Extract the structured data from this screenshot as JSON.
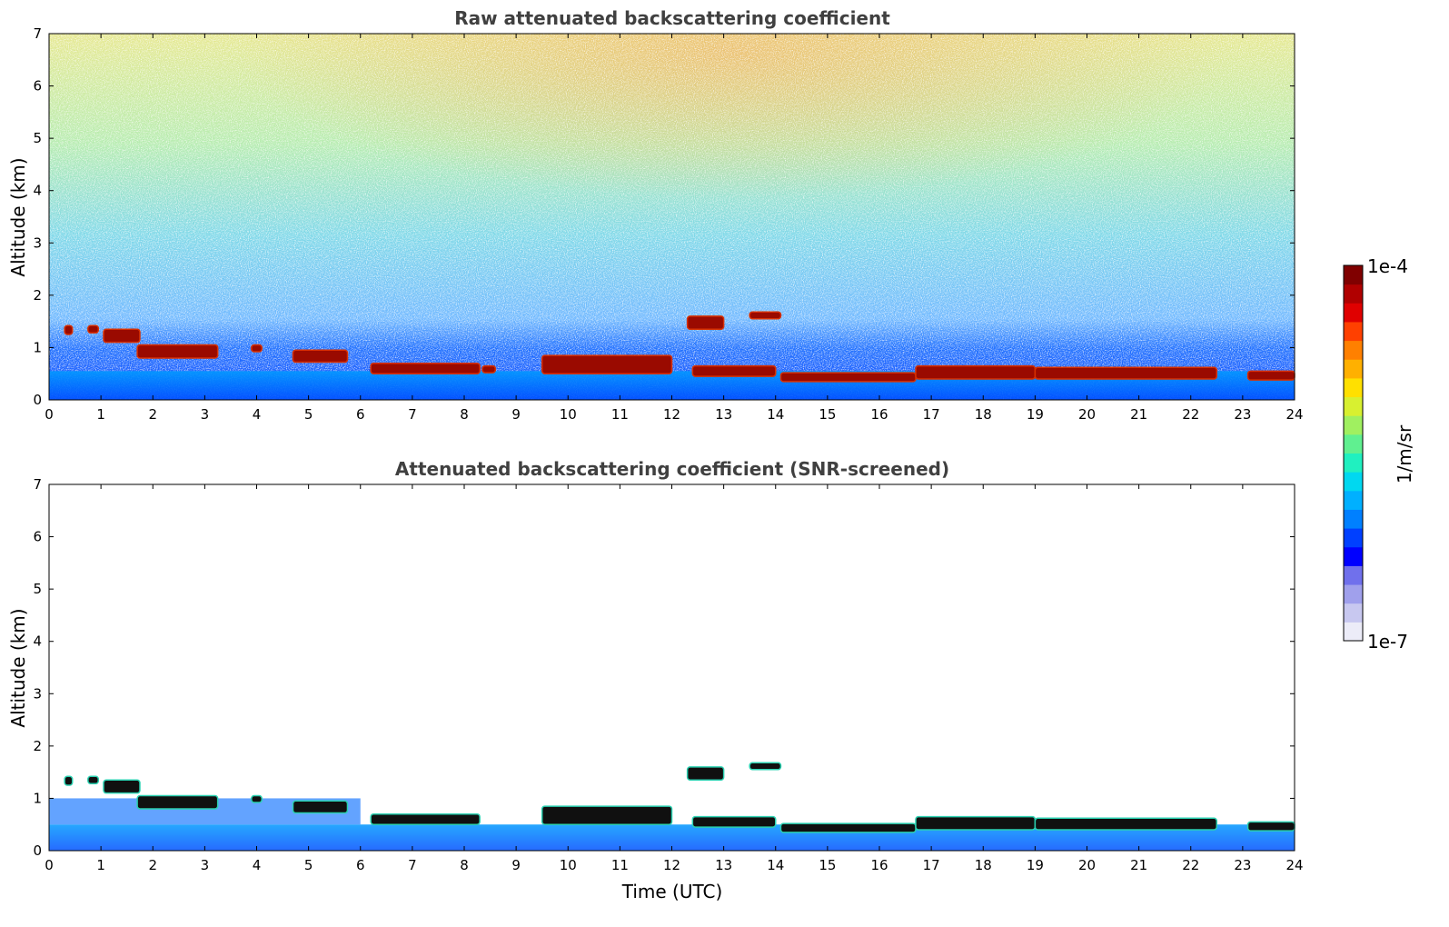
{
  "chart_data": [
    {
      "type": "heatmap",
      "title": "Raw attenuated backscattering coefficient",
      "xlabel": "",
      "ylabel": "Altitude (km)",
      "xlim": [
        0,
        24
      ],
      "ylim": [
        0,
        7
      ],
      "xticks": [
        "0",
        "1",
        "2",
        "3",
        "4",
        "5",
        "6",
        "7",
        "8",
        "9",
        "10",
        "11",
        "12",
        "13",
        "14",
        "15",
        "16",
        "17",
        "18",
        "19",
        "20",
        "21",
        "22",
        "23",
        "24"
      ],
      "yticks": [
        "0",
        "1",
        "2",
        "3",
        "4",
        "5",
        "6",
        "7"
      ],
      "screened": false,
      "cloud_layers": [
        {
          "x": [
            0.3,
            0.45
          ],
          "base": 1.25,
          "top": 1.42
        },
        {
          "x": [
            0.75,
            0.95
          ],
          "base": 1.28,
          "top": 1.42
        },
        {
          "x": [
            1.05,
            1.75
          ],
          "base": 1.1,
          "top": 1.35
        },
        {
          "x": [
            1.7,
            3.25
          ],
          "base": 0.8,
          "top": 1.05
        },
        {
          "x": [
            3.9,
            4.1
          ],
          "base": 0.92,
          "top": 1.05
        },
        {
          "x": [
            4.7,
            5.75
          ],
          "base": 0.72,
          "top": 0.95
        },
        {
          "x": [
            6.2,
            8.3
          ],
          "base": 0.5,
          "top": 0.7
        },
        {
          "x": [
            8.35,
            8.6
          ],
          "base": 0.52,
          "top": 0.65
        },
        {
          "x": [
            9.5,
            12.0
          ],
          "base": 0.5,
          "top": 0.85
        },
        {
          "x": [
            12.4,
            14.0
          ],
          "base": 0.45,
          "top": 0.65
        },
        {
          "x": [
            12.3,
            13.0
          ],
          "base": 1.35,
          "top": 1.6
        },
        {
          "x": [
            13.5,
            14.1
          ],
          "base": 1.55,
          "top": 1.68
        },
        {
          "x": [
            14.1,
            16.7
          ],
          "base": 0.35,
          "top": 0.52
        },
        {
          "x": [
            16.7,
            19.0
          ],
          "base": 0.4,
          "top": 0.65
        },
        {
          "x": [
            19.0,
            22.5
          ],
          "base": 0.4,
          "top": 0.62
        },
        {
          "x": [
            23.1,
            24.0
          ],
          "base": 0.38,
          "top": 0.55
        }
      ]
    },
    {
      "type": "heatmap",
      "title": "Attenuated backscattering coefficient (SNR-screened)",
      "xlabel": "Time (UTC)",
      "ylabel": "Altitude (km)",
      "xlim": [
        0,
        24
      ],
      "ylim": [
        0,
        7
      ],
      "xticks": [
        "0",
        "1",
        "2",
        "3",
        "4",
        "5",
        "6",
        "7",
        "8",
        "9",
        "10",
        "11",
        "12",
        "13",
        "14",
        "15",
        "16",
        "17",
        "18",
        "19",
        "20",
        "21",
        "22",
        "23",
        "24"
      ],
      "yticks": [
        "0",
        "1",
        "2",
        "3",
        "4",
        "5",
        "6",
        "7"
      ],
      "screened": true,
      "cloud_layers": [
        {
          "x": [
            0.3,
            0.45
          ],
          "base": 1.25,
          "top": 1.42
        },
        {
          "x": [
            0.75,
            0.95
          ],
          "base": 1.28,
          "top": 1.42
        },
        {
          "x": [
            1.05,
            1.75
          ],
          "base": 1.1,
          "top": 1.35
        },
        {
          "x": [
            1.7,
            3.25
          ],
          "base": 0.8,
          "top": 1.05
        },
        {
          "x": [
            3.9,
            4.1
          ],
          "base": 0.92,
          "top": 1.05
        },
        {
          "x": [
            4.7,
            5.75
          ],
          "base": 0.72,
          "top": 0.95
        },
        {
          "x": [
            6.2,
            8.3
          ],
          "base": 0.5,
          "top": 0.7
        },
        {
          "x": [
            9.5,
            12.0
          ],
          "base": 0.5,
          "top": 0.85
        },
        {
          "x": [
            12.4,
            14.0
          ],
          "base": 0.45,
          "top": 0.65
        },
        {
          "x": [
            12.3,
            13.0
          ],
          "base": 1.35,
          "top": 1.6
        },
        {
          "x": [
            13.5,
            14.1
          ],
          "base": 1.55,
          "top": 1.68
        },
        {
          "x": [
            14.1,
            16.7
          ],
          "base": 0.35,
          "top": 0.52
        },
        {
          "x": [
            16.7,
            19.0
          ],
          "base": 0.4,
          "top": 0.65
        },
        {
          "x": [
            19.0,
            22.5
          ],
          "base": 0.4,
          "top": 0.62
        },
        {
          "x": [
            23.1,
            24.0
          ],
          "base": 0.38,
          "top": 0.55
        }
      ]
    }
  ],
  "colorbar": {
    "label": "1/m/sr",
    "min_label": "1e-7",
    "max_label": "1e-4",
    "colors": [
      "#ececf8",
      "#c8c8f0",
      "#a0a0ec",
      "#7070ec",
      "#0000ff",
      "#0040ff",
      "#0080ff",
      "#00b0ff",
      "#00d8f0",
      "#20f0c0",
      "#60f090",
      "#a0f060",
      "#d8f030",
      "#ffe000",
      "#ffb000",
      "#ff8000",
      "#ff4000",
      "#e00000",
      "#b00000",
      "#800000"
    ]
  }
}
